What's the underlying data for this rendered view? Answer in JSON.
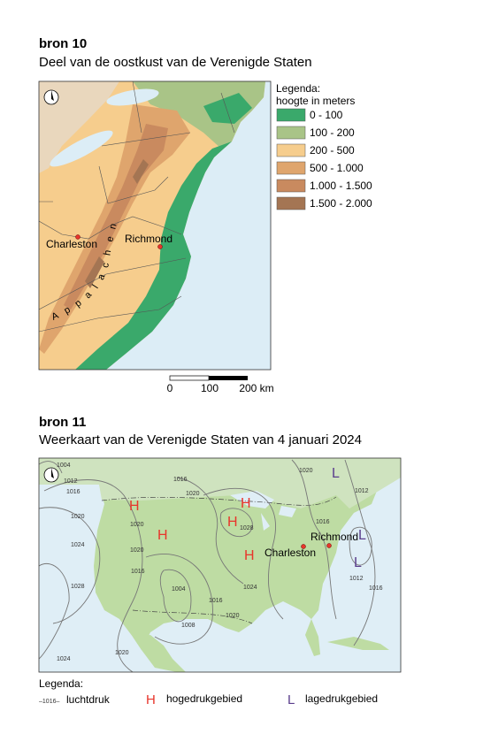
{
  "bron10": {
    "label": "bron 10",
    "title": "Deel van de oostkust van de Verenigde Staten",
    "legend": {
      "title": "Legenda:",
      "subtitle": "hoogte in meters",
      "items": [
        {
          "label": "0 - 100",
          "color": "#3aa96b"
        },
        {
          "label": "100 - 200",
          "color": "#a9c487"
        },
        {
          "label": "200 - 500",
          "color": "#f6cd8d"
        },
        {
          "label": "500 - 1.000",
          "color": "#dfa56d"
        },
        {
          "label": "1.000 - 1.500",
          "color": "#c98a5f"
        },
        {
          "label": "1.500 - 2.000",
          "color": "#a47553"
        }
      ]
    },
    "cities": [
      "Charleston",
      "Richmond"
    ],
    "mountains": "Appalachen",
    "scale": [
      "0",
      "100",
      "200 km"
    ]
  },
  "bron11": {
    "label": "bron 11",
    "title": "Weerkaart van de Verenigde Staten van 4 januari 2024",
    "isobar_labels": [
      "1004",
      "1012",
      "1016",
      "1020",
      "1024",
      "1028",
      "1024",
      "1020",
      "1016",
      "1020",
      "1020",
      "1020",
      "1016",
      "1004",
      "1016",
      "1008",
      "1020",
      "1028",
      "1024",
      "1020",
      "1012",
      "1016",
      "1012",
      "1016"
    ],
    "highs": [
      "H",
      "H",
      "H",
      "H",
      "H"
    ],
    "lows": [
      "L",
      "L",
      "L"
    ],
    "cities": [
      "Charleston",
      "Richmond"
    ],
    "legend": {
      "title": "Legenda:",
      "isobar": "1016",
      "isobar_text": "luchtdruk",
      "high": "H",
      "high_text": "hogedrukgebied",
      "low": "L",
      "low_text": "lagedrukgebied",
      "high_color": "#e8352b",
      "low_color": "#5a3d8c"
    }
  }
}
